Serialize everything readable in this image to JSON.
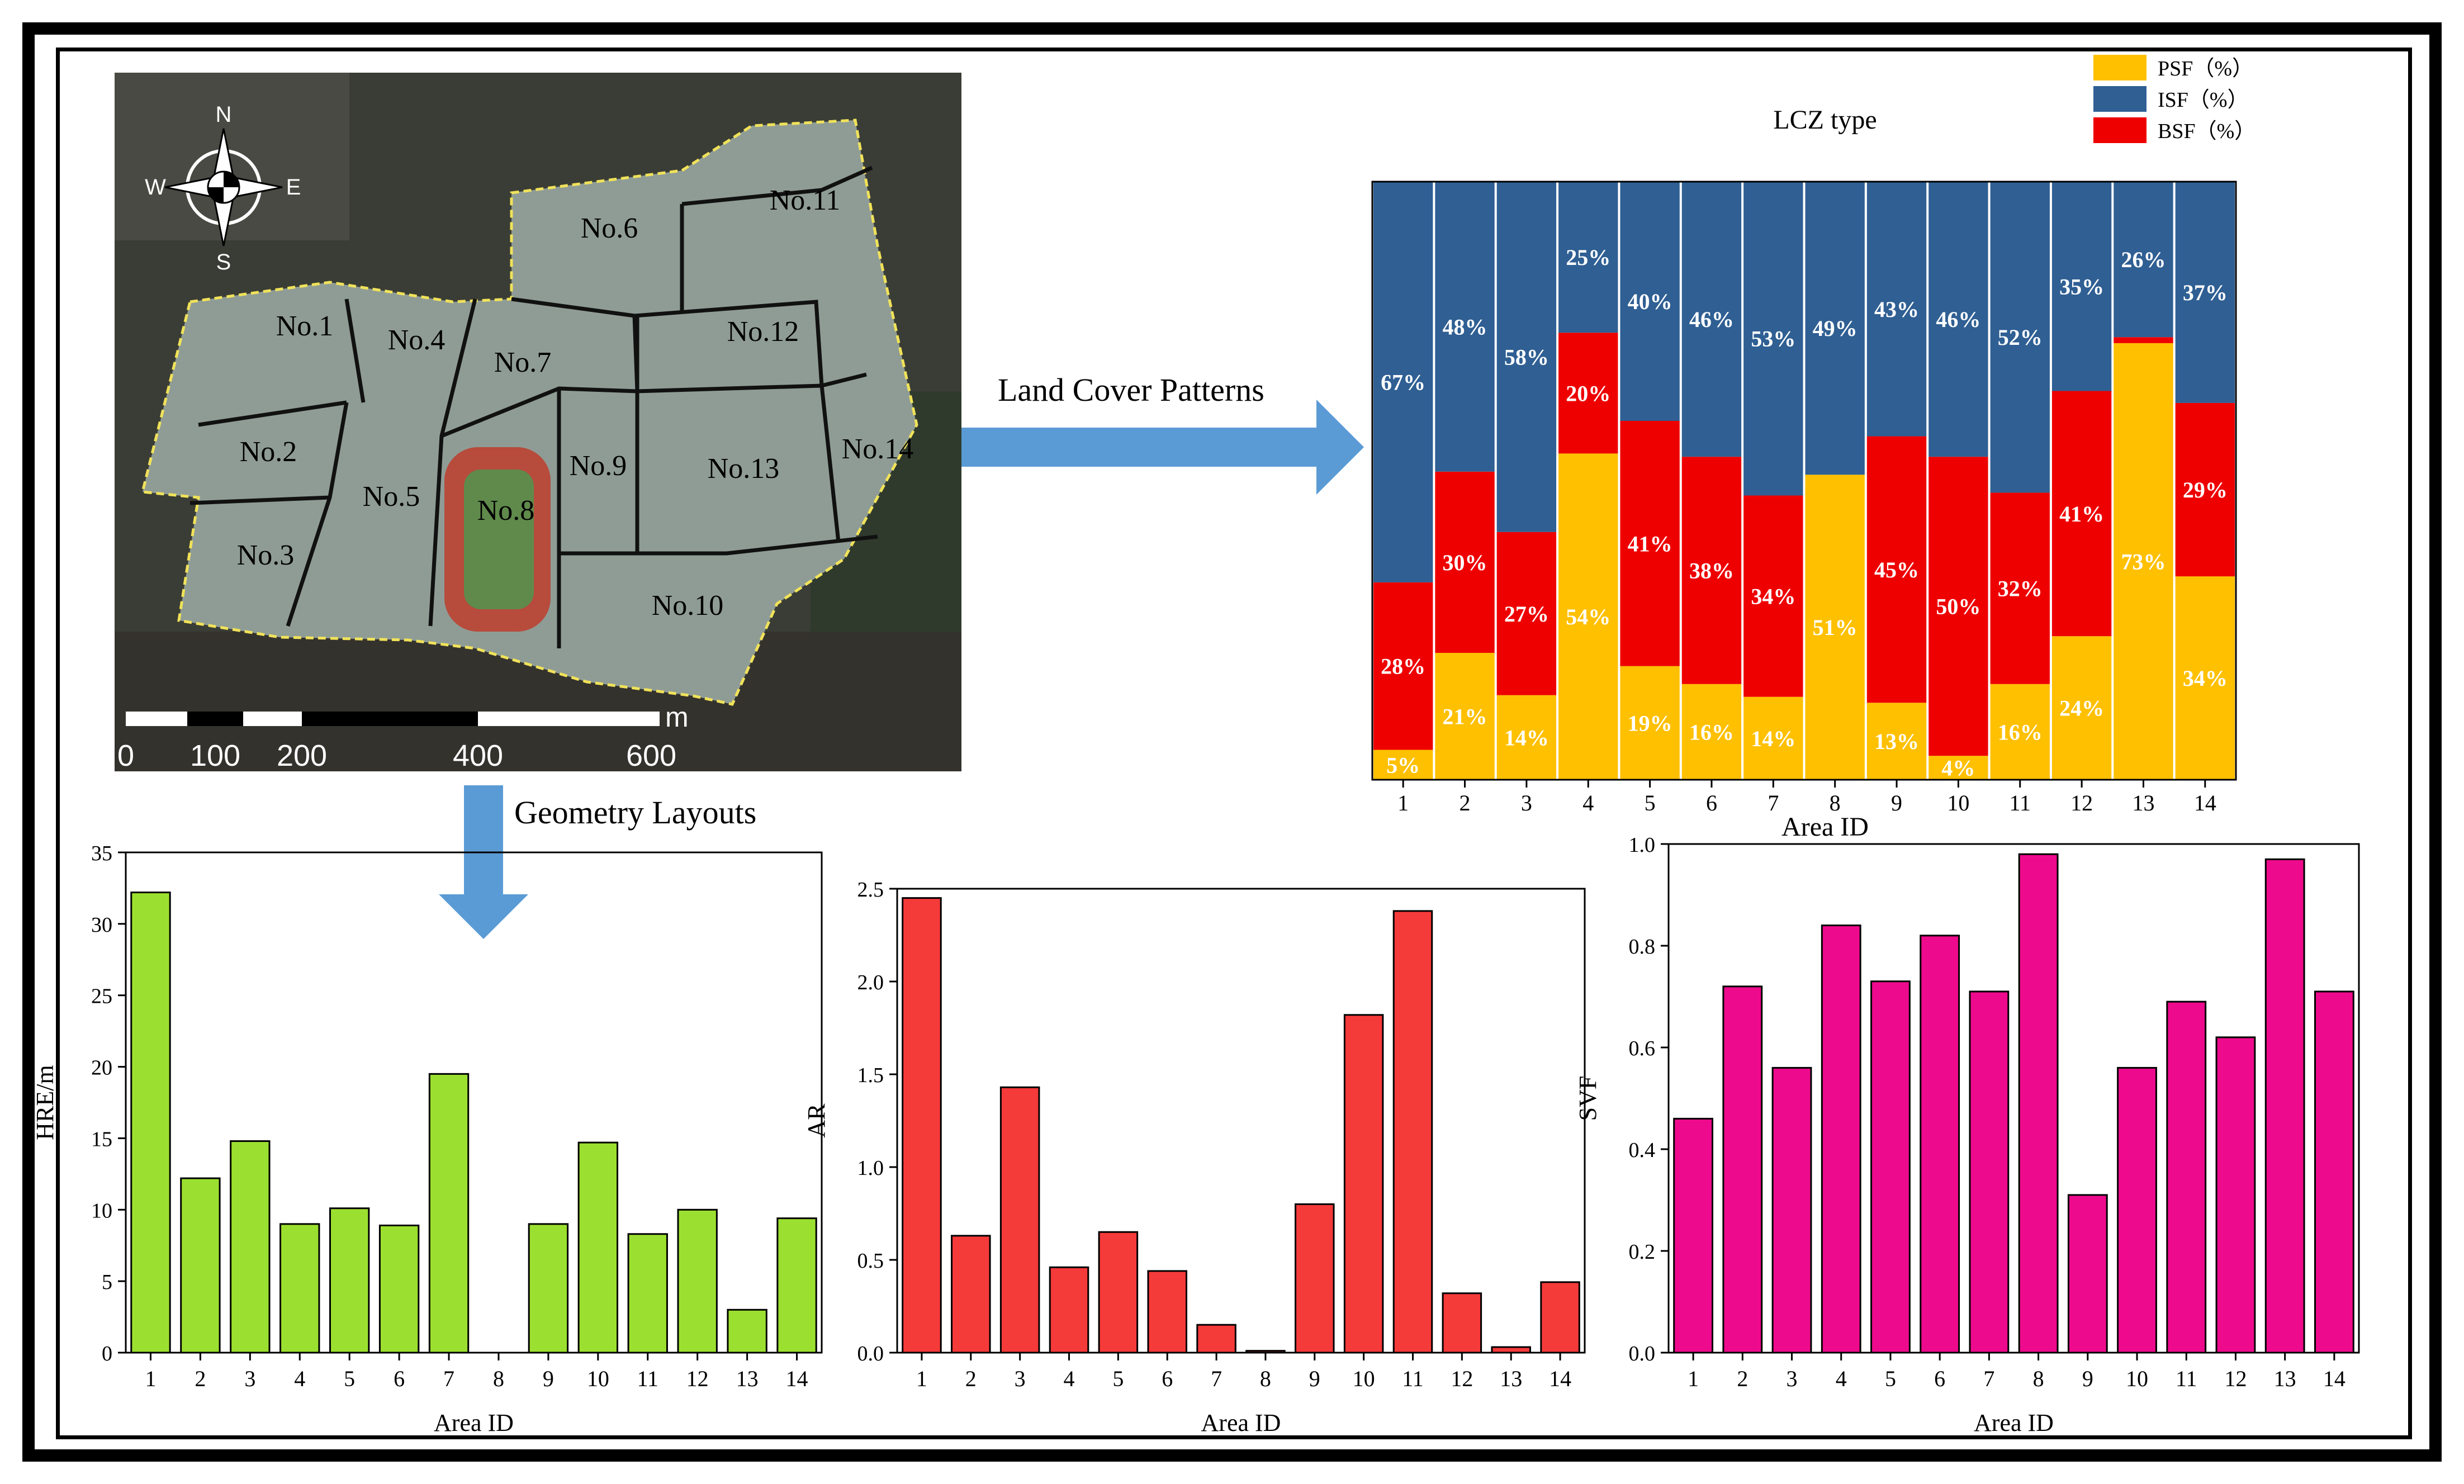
{
  "map": {
    "compass": {
      "n": "N",
      "s": "S",
      "e": "E",
      "w": "W"
    },
    "areas": [
      "No.1",
      "No.2",
      "No.3",
      "No.4",
      "No.5",
      "No.6",
      "No.7",
      "No.8",
      "No.9",
      "No.10",
      "No.11",
      "No.12",
      "No.13",
      "No.14"
    ],
    "scale_unit": "m",
    "scale_ticks": [
      "0",
      "100",
      "200",
      "400",
      "600"
    ]
  },
  "arrows": {
    "land_cover_label": "Land Cover Patterns",
    "geometry_label": "Geometry Layouts"
  },
  "colors": {
    "psf": "#FFC000",
    "isf": "#2F5F93",
    "bsf": "#EE0000",
    "hre": "#9BE030",
    "ar": "#F53A3A",
    "svf": "#EE0A8C",
    "arrow": "#5B9BD5"
  },
  "chart_data": [
    {
      "type": "bar",
      "stacked": true,
      "title": "LCZ type",
      "xlabel": "Area ID",
      "ylabel": "",
      "ylim": [
        0,
        100
      ],
      "categories": [
        "1",
        "2",
        "3",
        "4",
        "5",
        "6",
        "7",
        "8",
        "9",
        "10",
        "11",
        "12",
        "13",
        "14"
      ],
      "legend": [
        "PSF（%）",
        "ISF（%）",
        "BSF（%）"
      ],
      "legend_position": "top-right",
      "series": [
        {
          "name": "PSF",
          "values": [
            5,
            21,
            14,
            54,
            19,
            16,
            14,
            51,
            13,
            4,
            16,
            24,
            73,
            34
          ]
        },
        {
          "name": "BSF",
          "values": [
            28,
            30,
            27,
            20,
            41,
            38,
            34,
            0,
            45,
            50,
            32,
            41,
            1,
            29
          ]
        },
        {
          "name": "ISF",
          "values": [
            67,
            48,
            58,
            25,
            40,
            46,
            53,
            49,
            43,
            46,
            52,
            35,
            26,
            37
          ]
        }
      ]
    },
    {
      "type": "bar",
      "title": "",
      "xlabel": "Area ID",
      "ylabel": "HRE/m",
      "ylim": [
        0,
        35
      ],
      "yticks": [
        "0",
        "5",
        "10",
        "15",
        "20",
        "25",
        "30",
        "35"
      ],
      "categories": [
        "1",
        "2",
        "3",
        "4",
        "5",
        "6",
        "7",
        "8",
        "9",
        "10",
        "11",
        "12",
        "13",
        "14"
      ],
      "values": [
        32.2,
        12.2,
        14.8,
        9.0,
        10.1,
        8.9,
        19.5,
        0,
        9.0,
        14.7,
        8.3,
        10.0,
        3.0,
        9.4
      ]
    },
    {
      "type": "bar",
      "title": "",
      "xlabel": "Area ID",
      "ylabel": "AR",
      "ylim": [
        0,
        2.5
      ],
      "yticks": [
        "0.0",
        "0.5",
        "1.0",
        "1.5",
        "2.0",
        "2.5"
      ],
      "categories": [
        "1",
        "2",
        "3",
        "4",
        "5",
        "6",
        "7",
        "8",
        "9",
        "10",
        "11",
        "12",
        "13",
        "14"
      ],
      "values": [
        2.45,
        0.63,
        1.43,
        0.46,
        0.65,
        0.44,
        0.15,
        0.01,
        0.8,
        1.82,
        2.38,
        0.32,
        0.03,
        0.38
      ]
    },
    {
      "type": "bar",
      "title": "",
      "xlabel": "Area ID",
      "ylabel": "SVF",
      "ylim": [
        0,
        1.0
      ],
      "yticks": [
        "0.0",
        "0.2",
        "0.4",
        "0.6",
        "0.8",
        "1.0"
      ],
      "categories": [
        "1",
        "2",
        "3",
        "4",
        "5",
        "6",
        "7",
        "8",
        "9",
        "10",
        "11",
        "12",
        "13",
        "14"
      ],
      "values": [
        0.46,
        0.72,
        0.56,
        0.84,
        0.73,
        0.82,
        0.71,
        0.98,
        0.31,
        0.56,
        0.69,
        0.62,
        0.97,
        0.71
      ]
    }
  ]
}
